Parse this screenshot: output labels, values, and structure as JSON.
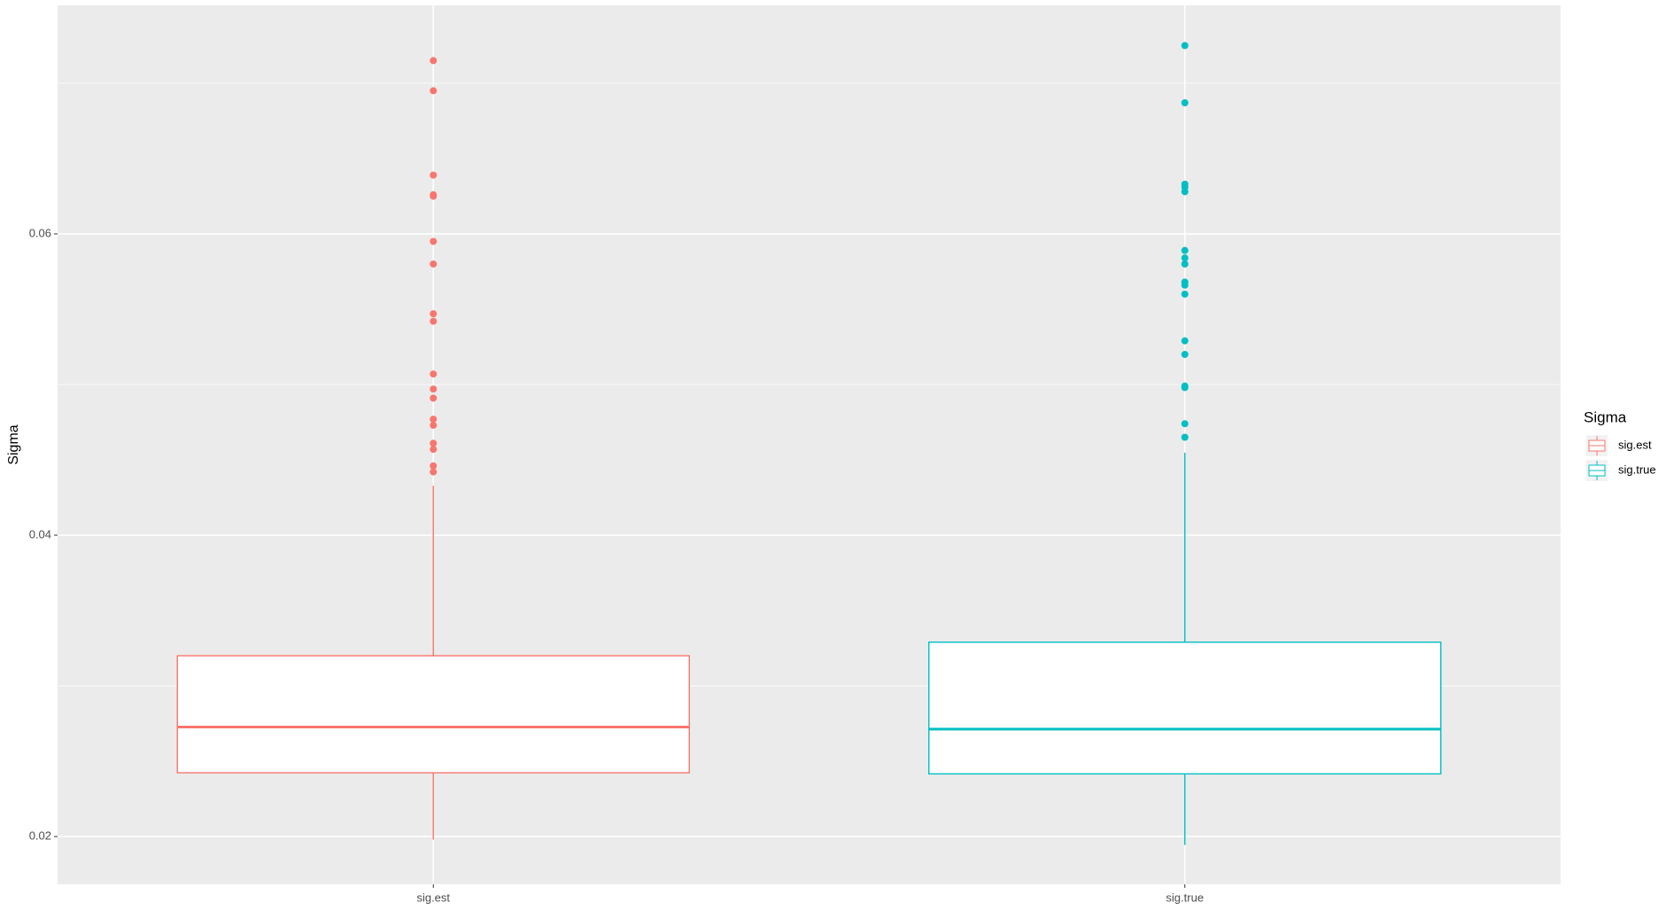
{
  "chart_data": {
    "type": "boxplot",
    "y_label": "Sigma",
    "legend_title": "Sigma",
    "categories": [
      "sig.est",
      "sig.true"
    ],
    "ylim": [
      0.01683,
      0.07517
    ],
    "yticks": [
      0.02,
      0.04,
      0.06
    ],
    "grid": true,
    "series": [
      {
        "name": "sig.est",
        "color": "#f8766d",
        "whisker_low": 0.0198,
        "q1": 0.02423,
        "median": 0.02727,
        "q3": 0.032,
        "whisker_high": 0.04328,
        "outliers": [
          0.0715,
          0.0695,
          0.0639,
          0.0626,
          0.0625,
          0.0595,
          0.058,
          0.0547,
          0.0542,
          0.0507,
          0.0497,
          0.0491,
          0.0477,
          0.0473,
          0.0461,
          0.0457,
          0.0446,
          0.0442
        ]
      },
      {
        "name": "sig.true",
        "color": "#00bfc4",
        "whisker_low": 0.01944,
        "q1": 0.02416,
        "median": 0.02713,
        "q3": 0.0329,
        "whisker_high": 0.04547,
        "outliers": [
          0.0725,
          0.0687,
          0.0633,
          0.0631,
          0.0628,
          0.0589,
          0.0584,
          0.058,
          0.0568,
          0.0566,
          0.056,
          0.0529,
          0.052,
          0.0499,
          0.0498,
          0.0474,
          0.0465
        ]
      }
    ]
  }
}
